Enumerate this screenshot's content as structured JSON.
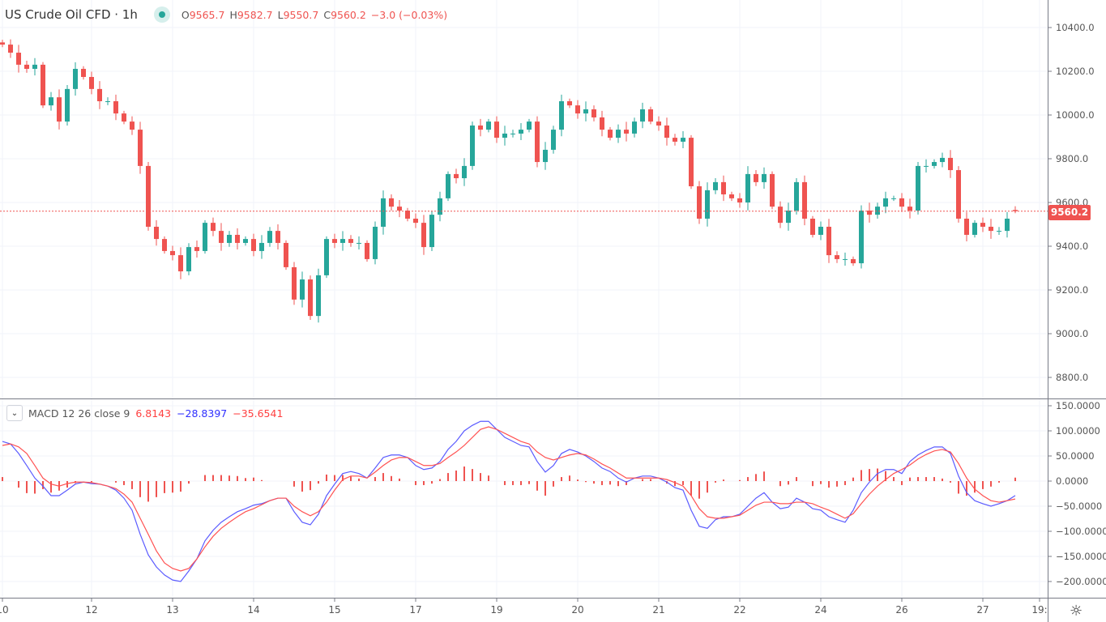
{
  "header": {
    "symbol": "US Crude Oil CFD · 1h",
    "status_color": "#26a69a",
    "ohlc": {
      "o_label": "O",
      "o": "9565.7",
      "h_label": "H",
      "h": "9582.7",
      "l_label": "L",
      "l": "9550.7",
      "c_label": "C",
      "c": "9560.2",
      "change": "−3.0 (−0.03%)"
    }
  },
  "last_price_label": "9560.2",
  "macd_legend": {
    "name": "MACD 12 26 close 9",
    "histogram": "6.8143",
    "macd": "−28.8397",
    "signal": "−35.6541"
  },
  "colors": {
    "up": "#26a69a",
    "down": "#ef5350",
    "macd": "#5b5bff",
    "signal": "#ff5252",
    "histogram": "#ef5350",
    "grid": "#f0f3fa"
  },
  "chart_data": [
    {
      "type": "candlestick",
      "title": "US Crude Oil CFD · 1h",
      "last_ohlc": [
        9565.7,
        9582.7,
        9550.7,
        9560.2
      ],
      "ylim": [
        8720,
        10490
      ],
      "yticks": [
        "10400.0",
        "10200.0",
        "10000.0",
        "9800.0",
        "9600.0",
        "9400.0",
        "9200.0",
        "9000.0",
        "8800.0"
      ],
      "xticks": [
        {
          "label": "10",
          "bar": 0
        },
        {
          "label": "12",
          "bar": 11
        },
        {
          "label": "13",
          "bar": 21
        },
        {
          "label": "14",
          "bar": 31
        },
        {
          "label": "15",
          "bar": 41
        },
        {
          "label": "17",
          "bar": 51
        },
        {
          "label": "19",
          "bar": 61
        },
        {
          "label": "20",
          "bar": 71
        },
        {
          "label": "21",
          "bar": 81
        },
        {
          "label": "22",
          "bar": 91
        },
        {
          "label": "24",
          "bar": 101
        },
        {
          "label": "26",
          "bar": 111
        },
        {
          "label": "27",
          "bar": 121
        },
        {
          "label": "19:",
          "bar": 128
        }
      ],
      "grid": true,
      "close": [
        10322,
        10285,
        10230,
        10211,
        10230,
        10044,
        10081,
        9970,
        10119,
        10211,
        10174,
        10119,
        10063,
        10063,
        10007,
        9970,
        9933,
        9767,
        9489,
        9433,
        9378,
        9359,
        9285,
        9396,
        9378,
        9507,
        9470,
        9415,
        9452,
        9415,
        9433,
        9378,
        9415,
        9470,
        9415,
        9304,
        9156,
        9248,
        9081,
        9267,
        9433,
        9415,
        9433,
        9415,
        9415,
        9341,
        9489,
        9619,
        9581,
        9563,
        9526,
        9507,
        9396,
        9544,
        9619,
        9730,
        9711,
        9767,
        9952,
        9933,
        9970,
        9896,
        9915,
        9915,
        9933,
        9970,
        9785,
        9841,
        9933,
        10063,
        10044,
        10007,
        10026,
        9989,
        9933,
        9896,
        9933,
        9915,
        9970,
        10026,
        9970,
        9952,
        9896,
        9878,
        9896,
        9674,
        9526,
        9656,
        9693,
        9637,
        9619,
        9600,
        9730,
        9693,
        9730,
        9581,
        9507,
        9563,
        9693,
        9526,
        9452,
        9489,
        9359,
        9341,
        9341,
        9322,
        9563,
        9544,
        9581,
        9619,
        9619,
        9581,
        9563,
        9767,
        9767,
        9785,
        9804,
        9748,
        9526,
        9452,
        9507,
        9489,
        9470,
        9470,
        9526,
        9560.2
      ]
    },
    {
      "type": "line",
      "title": "MACD 12 26 close 9",
      "ylim": [
        -225,
        165
      ],
      "yticks": [
        "150.0000",
        "100.0000",
        "50.0000",
        "0.0000",
        "−50.0000",
        "−100.0000",
        "−150.0000",
        "−200.0000"
      ],
      "series": [
        {
          "name": "MACD",
          "values": [
            79,
            74,
            55,
            31,
            6,
            -10,
            -29,
            -29,
            -18,
            -6,
            -2,
            -5,
            -6,
            -10,
            -18,
            -34,
            -58,
            -106,
            -147,
            -171,
            -187,
            -197,
            -200,
            -179,
            -155,
            -119,
            -98,
            -82,
            -71,
            -61,
            -55,
            -48,
            -45,
            -39,
            -34,
            -34,
            -61,
            -82,
            -87,
            -66,
            -29,
            -6,
            15,
            19,
            15,
            6,
            26,
            47,
            52,
            52,
            47,
            31,
            23,
            26,
            39,
            63,
            79,
            100,
            111,
            119,
            119,
            103,
            87,
            79,
            71,
            68,
            39,
            18,
            31,
            55,
            63,
            58,
            50,
            39,
            26,
            19,
            6,
            -2,
            6,
            10,
            10,
            6,
            -2,
            -13,
            -18,
            -58,
            -90,
            -94,
            -77,
            -71,
            -71,
            -66,
            -50,
            -34,
            -23,
            -42,
            -55,
            -52,
            -34,
            -42,
            -55,
            -58,
            -71,
            -77,
            -82,
            -58,
            -23,
            -2,
            15,
            23,
            23,
            15,
            39,
            52,
            61,
            68,
            68,
            55,
            10,
            -23,
            -39,
            -45,
            -50,
            -45,
            -39,
            -28.8
          ]
        },
        {
          "name": "Signal",
          "values": [
            71,
            74,
            68,
            55,
            31,
            6,
            -6,
            -10,
            -5,
            -2,
            -2,
            -3,
            -6,
            -10,
            -15,
            -26,
            -42,
            -74,
            -106,
            -139,
            -163,
            -174,
            -179,
            -174,
            -155,
            -131,
            -110,
            -94,
            -82,
            -71,
            -61,
            -55,
            -47,
            -39,
            -34,
            -34,
            -50,
            -61,
            -69,
            -61,
            -42,
            -18,
            3,
            10,
            10,
            6,
            18,
            31,
            42,
            47,
            47,
            39,
            31,
            31,
            35,
            47,
            58,
            71,
            87,
            103,
            108,
            103,
            95,
            87,
            79,
            74,
            58,
            47,
            42,
            47,
            52,
            55,
            52,
            44,
            34,
            26,
            16,
            6,
            6,
            6,
            6,
            6,
            3,
            -3,
            -10,
            -29,
            -55,
            -71,
            -74,
            -74,
            -71,
            -68,
            -58,
            -48,
            -42,
            -42,
            -45,
            -45,
            -42,
            -42,
            -45,
            -52,
            -58,
            -66,
            -74,
            -65,
            -45,
            -26,
            -10,
            3,
            15,
            23,
            32,
            44,
            53,
            60,
            63,
            58,
            35,
            6,
            -16,
            -29,
            -39,
            -42,
            -39,
            -35.7
          ]
        },
        {
          "name": "Histogram",
          "derived": "MACD − Signal"
        }
      ]
    }
  ]
}
